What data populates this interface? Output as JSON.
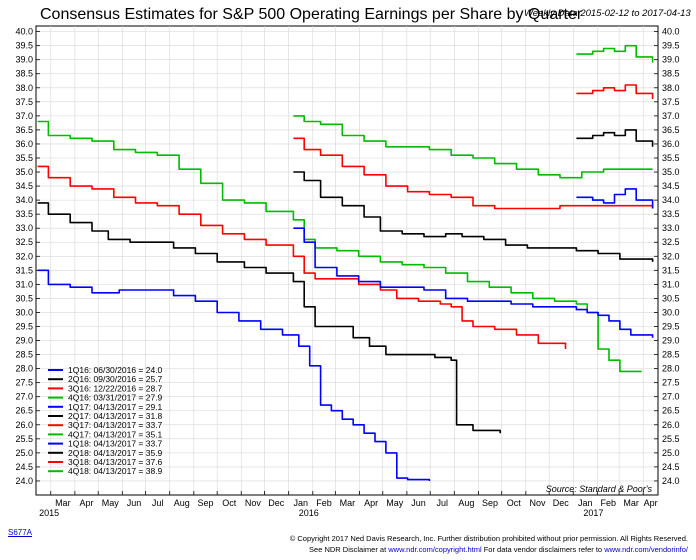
{
  "chart_data": {
    "type": "line",
    "title": "Consensus Estimates for S&P 500 Operating Earnings per Share by Quarter",
    "subtitle": "Weekly Data 2015-02-12 to 2017-04-13",
    "source": "Source:  Standard & Poor's",
    "ylim": [
      23.5,
      40.2
    ],
    "yticks": [
      "24.0",
      "24.5",
      "25.0",
      "25.5",
      "26.0",
      "26.5",
      "27.0",
      "27.5",
      "28.0",
      "28.5",
      "29.0",
      "29.5",
      "30.0",
      "30.5",
      "31.0",
      "31.5",
      "32.0",
      "32.5",
      "33.0",
      "33.5",
      "34.0",
      "34.5",
      "35.0",
      "35.5",
      "36.0",
      "36.5",
      "37.0",
      "37.5",
      "38.0",
      "38.5",
      "39.0",
      "39.5",
      "40.0"
    ],
    "xticks": [
      "Mar",
      "Apr",
      "May",
      "Jun",
      "Jul",
      "Aug",
      "Sep",
      "Oct",
      "Nov",
      "Dec",
      "Jan",
      "Feb",
      "Mar",
      "Apr",
      "May",
      "Jun",
      "Jul",
      "Aug",
      "Sep",
      "Oct",
      "Nov",
      "Dec",
      "Jan",
      "Feb",
      "Mar",
      "Apr"
    ],
    "years": [
      "2015",
      "2016",
      "2017"
    ],
    "grid": true,
    "legend_position": "bottom-left",
    "series": [
      {
        "name": "1Q16: 06/30/2016 = 24.0",
        "color": "#0000ff",
        "points": [
          [
            "2015-02-12",
            31.5
          ],
          [
            "2015-02-26",
            31.0
          ],
          [
            "2015-03-26",
            30.9
          ],
          [
            "2015-04-23",
            30.7
          ],
          [
            "2015-05-28",
            30.8
          ],
          [
            "2015-07-02",
            30.8
          ],
          [
            "2015-08-06",
            30.6
          ],
          [
            "2015-09-03",
            30.4
          ],
          [
            "2015-10-01",
            30.0
          ],
          [
            "2015-10-29",
            29.7
          ],
          [
            "2015-11-26",
            29.4
          ],
          [
            "2015-12-24",
            29.2
          ],
          [
            "2016-01-14",
            28.8
          ],
          [
            "2016-01-28",
            28.1
          ],
          [
            "2016-02-11",
            26.7
          ],
          [
            "2016-02-25",
            26.5
          ],
          [
            "2016-03-10",
            26.2
          ],
          [
            "2016-03-24",
            26.0
          ],
          [
            "2016-04-07",
            25.7
          ],
          [
            "2016-04-21",
            25.4
          ],
          [
            "2016-05-05",
            25.0
          ],
          [
            "2016-05-19",
            24.1
          ],
          [
            "2016-06-02",
            24.05
          ],
          [
            "2016-06-30",
            24.0
          ]
        ]
      },
      {
        "name": "2Q16: 09/30/2016 = 25.7",
        "color": "#000000",
        "points": [
          [
            "2015-02-12",
            33.9
          ],
          [
            "2015-02-26",
            33.5
          ],
          [
            "2015-03-26",
            33.2
          ],
          [
            "2015-04-23",
            32.9
          ],
          [
            "2015-05-14",
            32.6
          ],
          [
            "2015-06-11",
            32.5
          ],
          [
            "2015-07-09",
            32.5
          ],
          [
            "2015-08-06",
            32.3
          ],
          [
            "2015-09-03",
            32.1
          ],
          [
            "2015-10-01",
            31.8
          ],
          [
            "2015-11-05",
            31.6
          ],
          [
            "2015-12-03",
            31.4
          ],
          [
            "2016-01-07",
            31.1
          ],
          [
            "2016-01-21",
            30.2
          ],
          [
            "2016-02-04",
            29.5
          ],
          [
            "2016-03-03",
            29.5
          ],
          [
            "2016-03-24",
            29.1
          ],
          [
            "2016-04-14",
            28.8
          ],
          [
            "2016-05-05",
            28.5
          ],
          [
            "2016-06-02",
            28.5
          ],
          [
            "2016-07-07",
            28.4
          ],
          [
            "2016-07-28",
            28.3
          ],
          [
            "2016-08-04",
            26.0
          ],
          [
            "2016-08-25",
            25.8
          ],
          [
            "2016-09-29",
            25.7
          ]
        ]
      },
      {
        "name": "3Q16: 12/22/2016 = 28.7",
        "color": "#ff0000",
        "points": [
          [
            "2015-02-12",
            35.2
          ],
          [
            "2015-02-26",
            34.8
          ],
          [
            "2015-03-26",
            34.5
          ],
          [
            "2015-04-23",
            34.4
          ],
          [
            "2015-05-21",
            34.1
          ],
          [
            "2015-06-18",
            33.9
          ],
          [
            "2015-07-16",
            33.8
          ],
          [
            "2015-08-13",
            33.5
          ],
          [
            "2015-09-10",
            33.1
          ],
          [
            "2015-10-08",
            32.8
          ],
          [
            "2015-11-05",
            32.6
          ],
          [
            "2015-12-03",
            32.4
          ],
          [
            "2016-01-07",
            32.0
          ],
          [
            "2016-01-21",
            31.4
          ],
          [
            "2016-02-04",
            31.2
          ],
          [
            "2016-03-03",
            31.2
          ],
          [
            "2016-03-31",
            31.0
          ],
          [
            "2016-04-28",
            30.8
          ],
          [
            "2016-05-19",
            30.5
          ],
          [
            "2016-06-16",
            30.4
          ],
          [
            "2016-07-14",
            30.3
          ],
          [
            "2016-07-28",
            30.2
          ],
          [
            "2016-08-11",
            29.7
          ],
          [
            "2016-08-25",
            29.5
          ],
          [
            "2016-09-22",
            29.4
          ],
          [
            "2016-10-20",
            29.2
          ],
          [
            "2016-11-17",
            28.9
          ],
          [
            "2016-12-22",
            28.7
          ]
        ]
      },
      {
        "name": "4Q16: 03/31/2017 = 27.9",
        "color": "#00bb00",
        "points": [
          [
            "2015-02-12",
            36.8
          ],
          [
            "2015-02-26",
            36.3
          ],
          [
            "2015-03-26",
            36.2
          ],
          [
            "2015-04-23",
            36.1
          ],
          [
            "2015-05-21",
            35.8
          ],
          [
            "2015-06-18",
            35.7
          ],
          [
            "2015-07-16",
            35.6
          ],
          [
            "2015-08-13",
            35.1
          ],
          [
            "2015-09-10",
            34.6
          ],
          [
            "2015-10-08",
            34.0
          ],
          [
            "2015-11-05",
            33.9
          ],
          [
            "2015-12-03",
            33.6
          ],
          [
            "2016-01-07",
            33.3
          ],
          [
            "2016-01-21",
            32.6
          ],
          [
            "2016-02-04",
            32.3
          ],
          [
            "2016-03-03",
            32.2
          ],
          [
            "2016-03-31",
            32.0
          ],
          [
            "2016-04-28",
            31.8
          ],
          [
            "2016-05-26",
            31.7
          ],
          [
            "2016-06-23",
            31.6
          ],
          [
            "2016-07-21",
            31.4
          ],
          [
            "2016-08-18",
            31.1
          ],
          [
            "2016-09-15",
            30.9
          ],
          [
            "2016-10-13",
            30.7
          ],
          [
            "2016-11-10",
            30.5
          ],
          [
            "2016-12-08",
            30.4
          ],
          [
            "2017-01-05",
            30.3
          ],
          [
            "2017-01-19",
            30.0
          ],
          [
            "2017-02-02",
            28.7
          ],
          [
            "2017-02-16",
            28.3
          ],
          [
            "2017-03-02",
            27.9
          ],
          [
            "2017-03-30",
            27.9
          ]
        ]
      },
      {
        "name": "1Q17: 04/13/2017 = 29.1",
        "color": "#0000ff",
        "points": [
          [
            "2016-01-07",
            33.0
          ],
          [
            "2016-01-21",
            32.5
          ],
          [
            "2016-02-04",
            31.6
          ],
          [
            "2016-03-03",
            31.3
          ],
          [
            "2016-03-31",
            31.1
          ],
          [
            "2016-04-28",
            30.9
          ],
          [
            "2016-05-26",
            30.9
          ],
          [
            "2016-06-23",
            30.8
          ],
          [
            "2016-07-21",
            30.5
          ],
          [
            "2016-08-18",
            30.4
          ],
          [
            "2016-09-15",
            30.4
          ],
          [
            "2016-10-13",
            30.3
          ],
          [
            "2016-11-10",
            30.2
          ],
          [
            "2016-12-08",
            30.2
          ],
          [
            "2017-01-05",
            30.1
          ],
          [
            "2017-01-19",
            30.0
          ],
          [
            "2017-02-02",
            29.9
          ],
          [
            "2017-02-16",
            29.7
          ],
          [
            "2017-03-02",
            29.4
          ],
          [
            "2017-03-16",
            29.2
          ],
          [
            "2017-04-13",
            29.1
          ]
        ]
      },
      {
        "name": "2Q17: 04/13/2017 = 31.8",
        "color": "#000000",
        "points": [
          [
            "2016-01-07",
            35.0
          ],
          [
            "2016-01-21",
            34.7
          ],
          [
            "2016-02-11",
            34.1
          ],
          [
            "2016-03-10",
            33.8
          ],
          [
            "2016-04-07",
            33.4
          ],
          [
            "2016-04-28",
            32.9
          ],
          [
            "2016-05-26",
            32.8
          ],
          [
            "2016-06-23",
            32.7
          ],
          [
            "2016-07-21",
            32.8
          ],
          [
            "2016-08-11",
            32.7
          ],
          [
            "2016-09-08",
            32.6
          ],
          [
            "2016-10-06",
            32.4
          ],
          [
            "2016-11-03",
            32.3
          ],
          [
            "2016-12-01",
            32.3
          ],
          [
            "2017-01-05",
            32.2
          ],
          [
            "2017-02-02",
            32.1
          ],
          [
            "2017-03-02",
            31.9
          ],
          [
            "2017-04-13",
            31.8
          ]
        ]
      },
      {
        "name": "3Q17: 04/13/2017 = 33.7",
        "color": "#ff0000",
        "points": [
          [
            "2016-01-07",
            36.2
          ],
          [
            "2016-01-21",
            35.8
          ],
          [
            "2016-02-11",
            35.6
          ],
          [
            "2016-03-10",
            35.2
          ],
          [
            "2016-04-07",
            34.9
          ],
          [
            "2016-05-05",
            34.5
          ],
          [
            "2016-06-02",
            34.3
          ],
          [
            "2016-06-30",
            34.2
          ],
          [
            "2016-07-28",
            34.1
          ],
          [
            "2016-08-25",
            33.8
          ],
          [
            "2016-09-22",
            33.7
          ],
          [
            "2016-10-20",
            33.7
          ],
          [
            "2016-11-17",
            33.7
          ],
          [
            "2016-12-15",
            33.8
          ],
          [
            "2017-01-12",
            33.8
          ],
          [
            "2017-02-09",
            33.8
          ],
          [
            "2017-03-09",
            33.8
          ],
          [
            "2017-04-13",
            33.7
          ]
        ]
      },
      {
        "name": "4Q17: 04/13/2017 = 35.1",
        "color": "#00bb00",
        "points": [
          [
            "2016-01-07",
            37.0
          ],
          [
            "2016-01-21",
            36.8
          ],
          [
            "2016-02-11",
            36.7
          ],
          [
            "2016-03-10",
            36.3
          ],
          [
            "2016-04-07",
            36.1
          ],
          [
            "2016-05-05",
            35.9
          ],
          [
            "2016-06-02",
            35.9
          ],
          [
            "2016-06-30",
            35.8
          ],
          [
            "2016-07-28",
            35.6
          ],
          [
            "2016-08-25",
            35.5
          ],
          [
            "2016-09-22",
            35.3
          ],
          [
            "2016-10-20",
            35.1
          ],
          [
            "2016-11-17",
            34.9
          ],
          [
            "2016-12-15",
            34.8
          ],
          [
            "2017-01-12",
            35.0
          ],
          [
            "2017-02-09",
            35.1
          ],
          [
            "2017-03-09",
            35.1
          ],
          [
            "2017-04-13",
            35.1
          ]
        ]
      },
      {
        "name": "1Q18: 04/13/2017 = 33.7",
        "color": "#0000ff",
        "points": [
          [
            "2017-01-05",
            34.1
          ],
          [
            "2017-01-26",
            34.0
          ],
          [
            "2017-02-09",
            33.9
          ],
          [
            "2017-02-23",
            34.2
          ],
          [
            "2017-03-09",
            34.4
          ],
          [
            "2017-03-23",
            34.0
          ],
          [
            "2017-04-13",
            33.7
          ]
        ]
      },
      {
        "name": "2Q18: 04/13/2017 = 35.9",
        "color": "#000000",
        "points": [
          [
            "2017-01-05",
            36.2
          ],
          [
            "2017-01-26",
            36.3
          ],
          [
            "2017-02-09",
            36.4
          ],
          [
            "2017-02-23",
            36.3
          ],
          [
            "2017-03-09",
            36.5
          ],
          [
            "2017-03-23",
            36.1
          ],
          [
            "2017-04-13",
            35.9
          ]
        ]
      },
      {
        "name": "3Q18: 04/13/2017 = 37.6",
        "color": "#ff0000",
        "points": [
          [
            "2017-01-05",
            37.8
          ],
          [
            "2017-01-26",
            37.9
          ],
          [
            "2017-02-09",
            38.0
          ],
          [
            "2017-02-23",
            37.9
          ],
          [
            "2017-03-09",
            38.1
          ],
          [
            "2017-03-23",
            37.8
          ],
          [
            "2017-04-13",
            37.6
          ]
        ]
      },
      {
        "name": "4Q18: 04/13/2017 = 38.9",
        "color": "#00bb00",
        "points": [
          [
            "2017-01-05",
            39.2
          ],
          [
            "2017-01-26",
            39.3
          ],
          [
            "2017-02-09",
            39.4
          ],
          [
            "2017-02-23",
            39.3
          ],
          [
            "2017-03-09",
            39.5
          ],
          [
            "2017-03-23",
            39.1
          ],
          [
            "2017-04-13",
            38.9
          ]
        ]
      }
    ]
  },
  "footer": {
    "code": "S677A",
    "copyright": "© Copyright 2017 Ned Davis Research, Inc. Further distribution prohibited without prior permission. All Rights Reserved.",
    "disclaimer_prefix": "See NDR Disclaimer at",
    "disclaimer_link": "www.ndr.com/copyright.html",
    "vendor_prefix": "For data vendor disclaimers refer to",
    "vendor_link": "www.ndr.com/vendorinfo/"
  }
}
